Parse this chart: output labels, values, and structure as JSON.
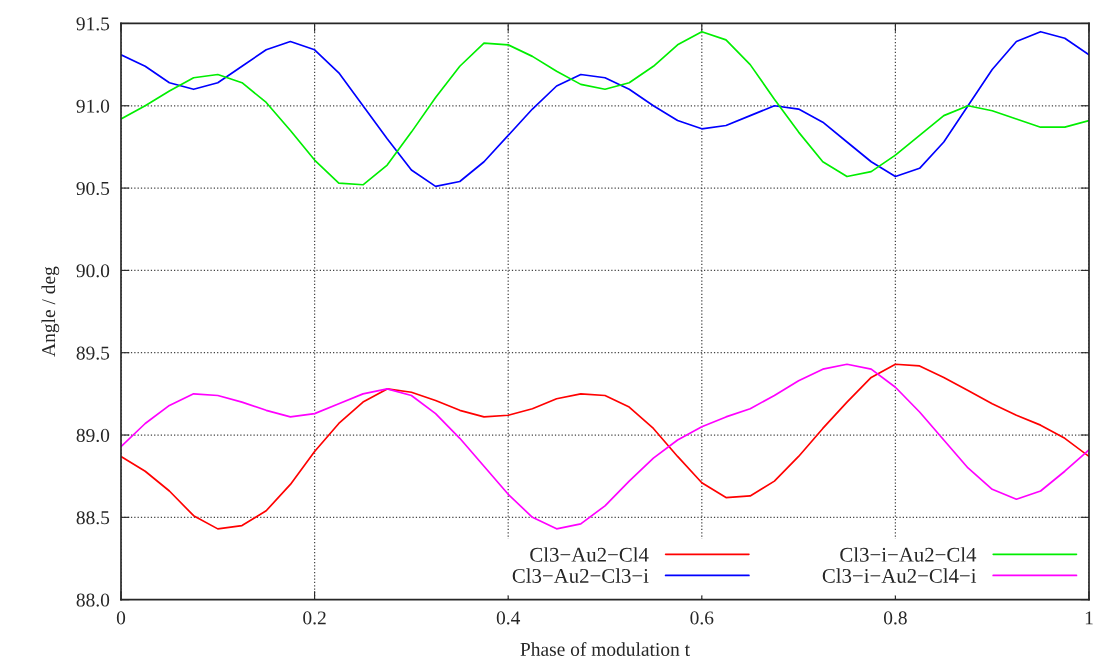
{
  "chart_data": {
    "type": "line",
    "xlabel": "Phase of modulation t",
    "ylabel": "Angle / deg",
    "xlim": [
      0,
      1
    ],
    "xticks": [
      0,
      0.2,
      0.4,
      0.6,
      0.8,
      1
    ],
    "ylim": [
      88.0,
      91.5
    ],
    "yticks": [
      {
        "value": 88.0,
        "label": "88.0"
      },
      {
        "value": 88.5,
        "label": "88.5"
      },
      {
        "value": 89.0,
        "label": "89.0"
      },
      {
        "value": 89.5,
        "label": "89.5"
      },
      {
        "value": 90.0,
        "label": "90.0"
      },
      {
        "value": 90.5,
        "label": "90.5"
      },
      {
        "value": 91.0,
        "label": "91.0"
      },
      {
        "value": 91.5,
        "label": "91.5"
      }
    ],
    "grid": true,
    "legend": "bottom right",
    "marker": "none",
    "line_style": "solid",
    "x": [
      0,
      0.025,
      0.05,
      0.075,
      0.1,
      0.125,
      0.15,
      0.175,
      0.2,
      0.225,
      0.25,
      0.275,
      0.3,
      0.325,
      0.35,
      0.375,
      0.4,
      0.425,
      0.45,
      0.475,
      0.5,
      0.525,
      0.55,
      0.575,
      0.6,
      0.625,
      0.65,
      0.675,
      0.7,
      0.725,
      0.75,
      0.775,
      0.8,
      0.825,
      0.85,
      0.875,
      0.9,
      0.925,
      0.95,
      0.975,
      1
    ],
    "series": [
      {
        "name": "Cl3−Au2−Cl4",
        "color": "#ff0000",
        "values": [
          88.87,
          88.78,
          88.66,
          88.51,
          88.43,
          88.45,
          88.54,
          88.7,
          88.9,
          89.07,
          89.2,
          89.28,
          89.26,
          89.21,
          89.15,
          89.11,
          89.12,
          89.16,
          89.22,
          89.25,
          89.24,
          89.17,
          89.04,
          88.87,
          88.71,
          88.62,
          88.63,
          88.72,
          88.87,
          89.04,
          89.2,
          89.35,
          89.43,
          89.42,
          89.35,
          89.27,
          89.19,
          89.12,
          89.06,
          88.98,
          88.87
        ]
      },
      {
        "name": "Cl3−Au2−Cl3−i",
        "color": "#0000ff",
        "values": [
          91.31,
          91.24,
          91.14,
          91.1,
          91.14,
          91.24,
          91.34,
          91.39,
          91.34,
          91.2,
          91.0,
          90.8,
          90.61,
          90.51,
          90.54,
          90.66,
          90.82,
          90.98,
          91.12,
          91.19,
          91.17,
          91.1,
          91.0,
          90.91,
          90.86,
          90.88,
          90.94,
          91.0,
          90.98,
          90.9,
          90.78,
          90.66,
          90.57,
          90.62,
          90.78,
          91.0,
          91.22,
          91.39,
          91.45,
          91.41,
          91.31
        ]
      },
      {
        "name": "Cl3−i−Au2−Cl4",
        "color": "#00ee00",
        "values": [
          90.92,
          91.0,
          91.09,
          91.17,
          91.19,
          91.14,
          91.02,
          90.85,
          90.67,
          90.53,
          90.52,
          90.64,
          90.84,
          91.05,
          91.24,
          91.38,
          91.37,
          91.3,
          91.21,
          91.13,
          91.1,
          91.14,
          91.24,
          91.37,
          91.45,
          91.4,
          91.25,
          91.04,
          90.84,
          90.66,
          90.57,
          90.6,
          90.7,
          90.82,
          90.94,
          91.0,
          90.97,
          90.92,
          90.87,
          90.87,
          90.91
        ]
      },
      {
        "name": "Cl3−i−Au2−Cl4−i",
        "color": "#ff00ff",
        "values": [
          88.93,
          89.07,
          89.18,
          89.25,
          89.24,
          89.2,
          89.15,
          89.11,
          89.13,
          89.19,
          89.25,
          89.28,
          89.24,
          89.13,
          88.98,
          88.81,
          88.64,
          88.5,
          88.43,
          88.46,
          88.57,
          88.72,
          88.86,
          88.97,
          89.05,
          89.11,
          89.16,
          89.24,
          89.33,
          89.4,
          89.43,
          89.4,
          89.29,
          89.14,
          88.97,
          88.8,
          88.67,
          88.61,
          88.66,
          88.78,
          88.91
        ]
      }
    ]
  }
}
